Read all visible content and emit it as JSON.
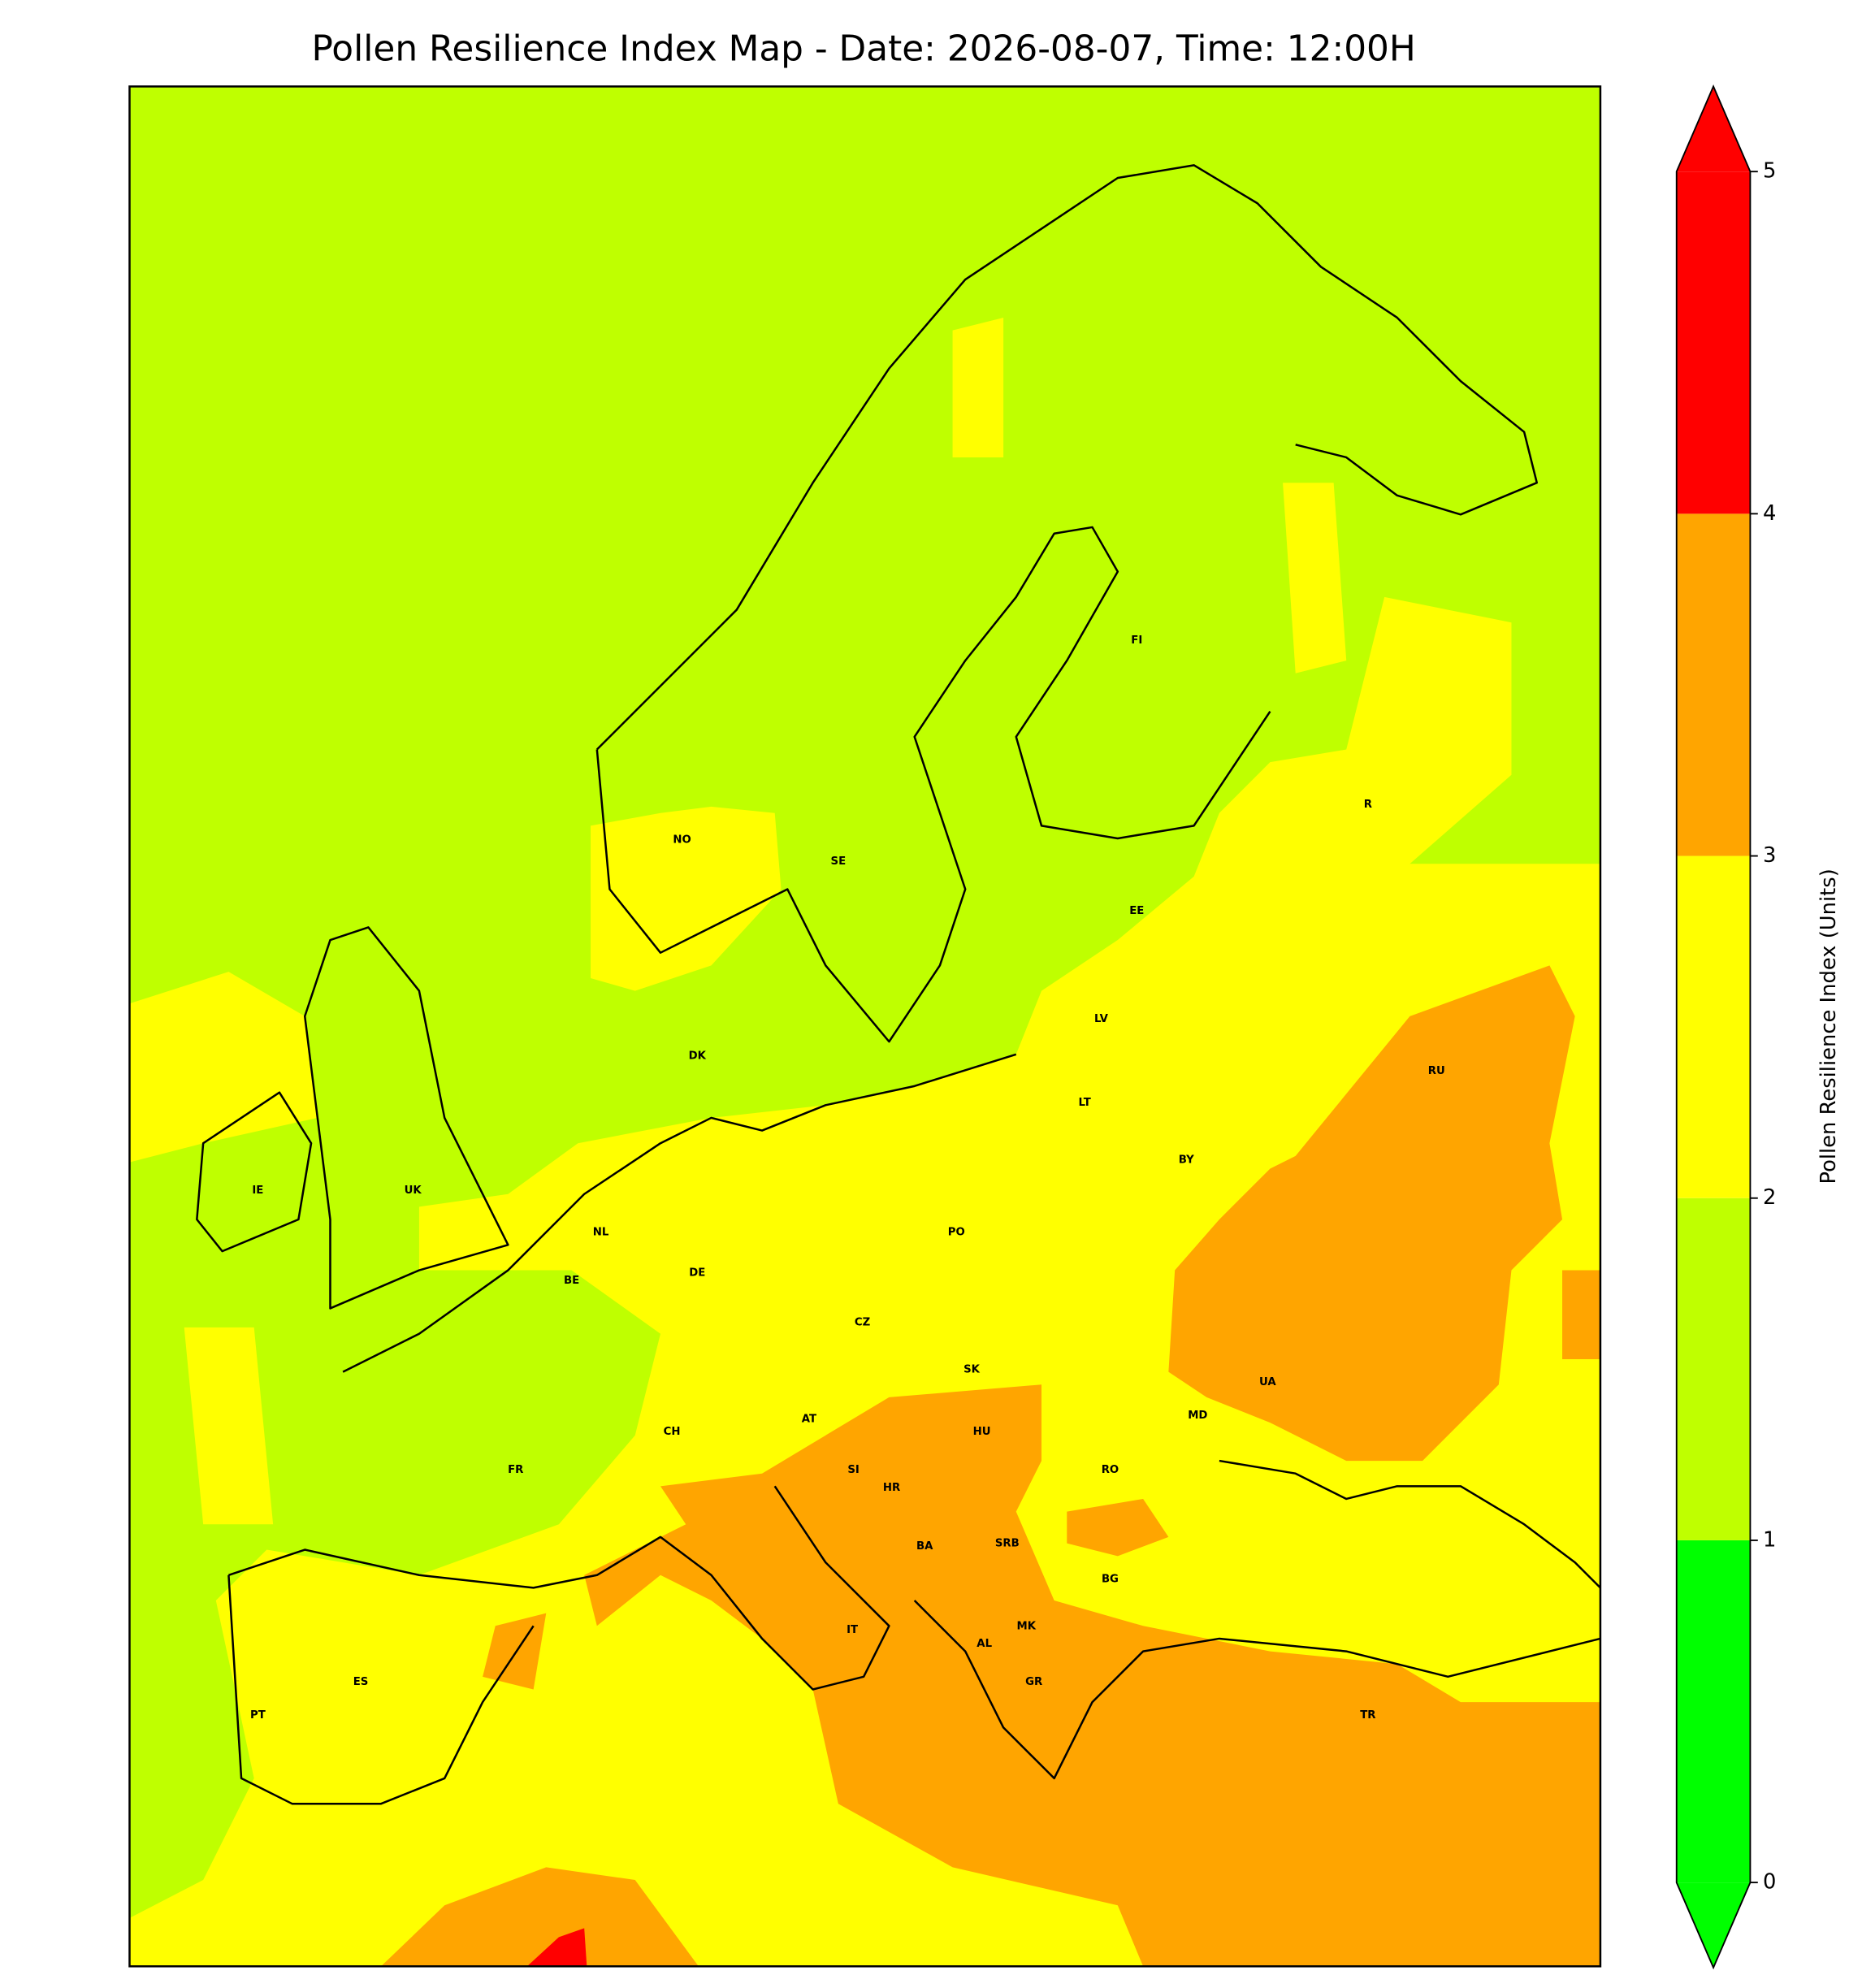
{
  "title": "Pollen Resilience Index Map - Date: 2026-08-07, Time: 12:00H",
  "countries": [
    "NO",
    "SE",
    "FI",
    "EE",
    "LV",
    "LT",
    "DK",
    "IE",
    "UK",
    "NL",
    "BE",
    "DE",
    "PO",
    "BY",
    "RU",
    "R",
    "CZ",
    "SK",
    "UA",
    "AT",
    "HU",
    "MD",
    "CH",
    "SI",
    "HR",
    "RO",
    "FR",
    "BA",
    "SRB",
    "BG",
    "IT",
    "MK",
    "AL",
    "ES",
    "GR",
    "TR",
    "PT"
  ],
  "colorbar": {
    "label": "Pollen Resilience Index (Units)",
    "clim": [
      0,
      5
    ],
    "ticks": [
      0,
      1,
      2,
      3,
      4,
      5
    ],
    "colors": [
      "#00ff00",
      "#bfff00",
      "#ffff00",
      "#ffa500",
      "#ff0000"
    ],
    "under_color": "#00ff00",
    "over_color": "#ff0000"
  }
}
